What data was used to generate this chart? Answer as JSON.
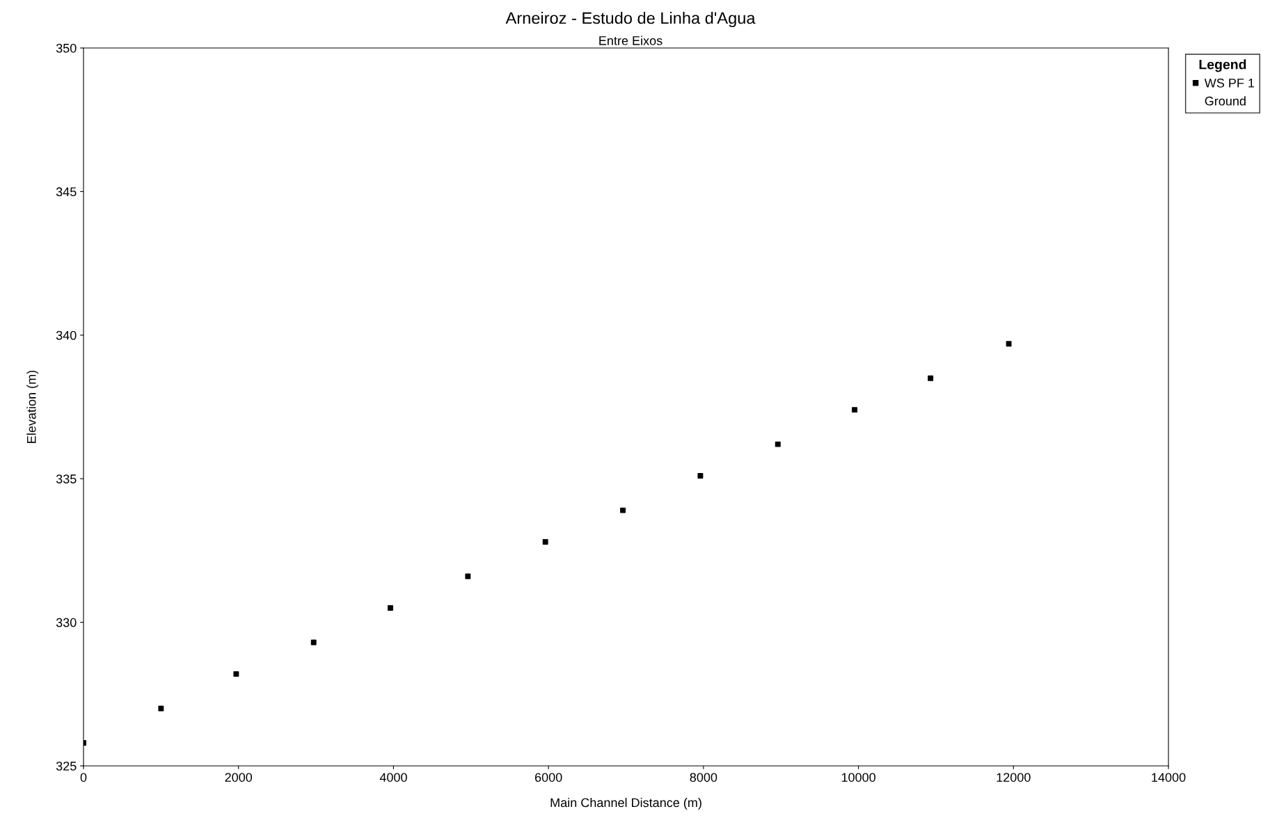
{
  "chart_data": {
    "type": "scatter",
    "title": "Arneiroz - Estudo de Linha d'Agua",
    "subtitle": "Entre Eixos",
    "xlabel": "Main Channel Distance (m)",
    "ylabel": "Elevation (m)",
    "legend_title": "Legend",
    "x": [
      0,
      1000,
      1970,
      2970,
      3960,
      4960,
      5960,
      6960,
      7960,
      8960,
      9950,
      10930,
      11940
    ],
    "series": [
      {
        "name": "WS PF 1",
        "color": "#000000",
        "values": [
          325.8,
          327.0,
          328.2,
          329.3,
          330.5,
          331.6,
          332.8,
          333.9,
          335.1,
          336.2,
          337.4,
          338.5,
          339.7
        ]
      },
      {
        "name": "Ground",
        "type": "line",
        "color": "#000000",
        "values": [
          null,
          null,
          null,
          null,
          null,
          null,
          null,
          null,
          null,
          null,
          null,
          null,
          null
        ]
      }
    ],
    "xlim": [
      0,
      14000
    ],
    "xticks": [
      0,
      2000,
      4000,
      6000,
      8000,
      10000,
      12000,
      14000
    ],
    "ylim": [
      325,
      350
    ],
    "yticks": [
      325,
      330,
      335,
      340,
      345,
      350
    ],
    "marker": "square",
    "grid": false,
    "legend": "right"
  }
}
